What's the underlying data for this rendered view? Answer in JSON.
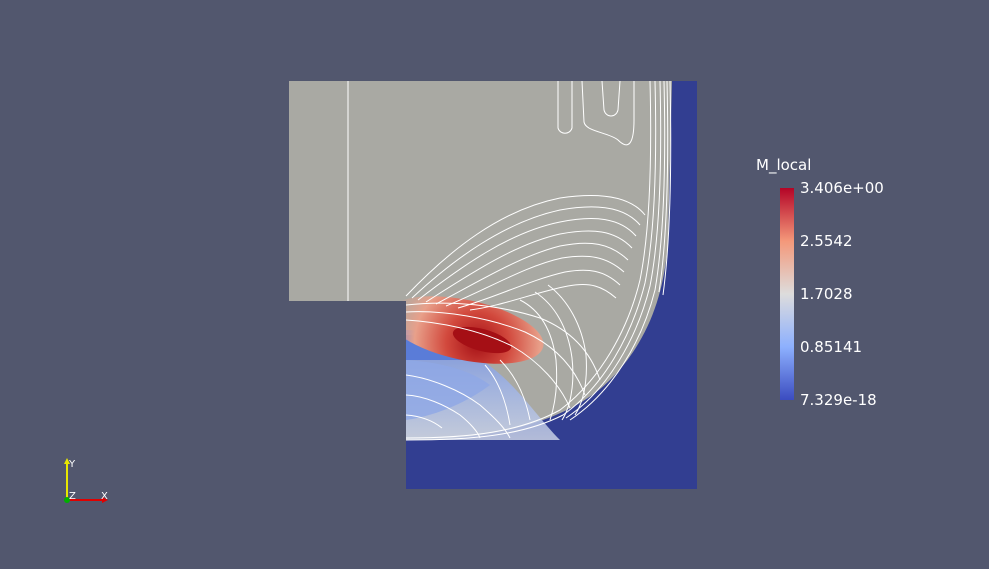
{
  "scalar_bar": {
    "title": "M_local",
    "ticks": [
      "3.406e+00",
      "2.5542",
      "1.7028",
      "0.85141",
      "7.329e-18"
    ],
    "colormap": [
      "#b40426",
      "#f4987a",
      "#dddcdc",
      "#8db0fe",
      "#3b4cc0"
    ]
  },
  "axes": {
    "y": "Y",
    "z": "Z",
    "x": "X",
    "y_color": "#e8e800",
    "x_color": "#e00000",
    "z_color": "#00b000"
  },
  "colors": {
    "background": "#52576e",
    "field_gray": "#a9a9a3",
    "field_blue": "#323e91",
    "hot": "#a50f15"
  }
}
